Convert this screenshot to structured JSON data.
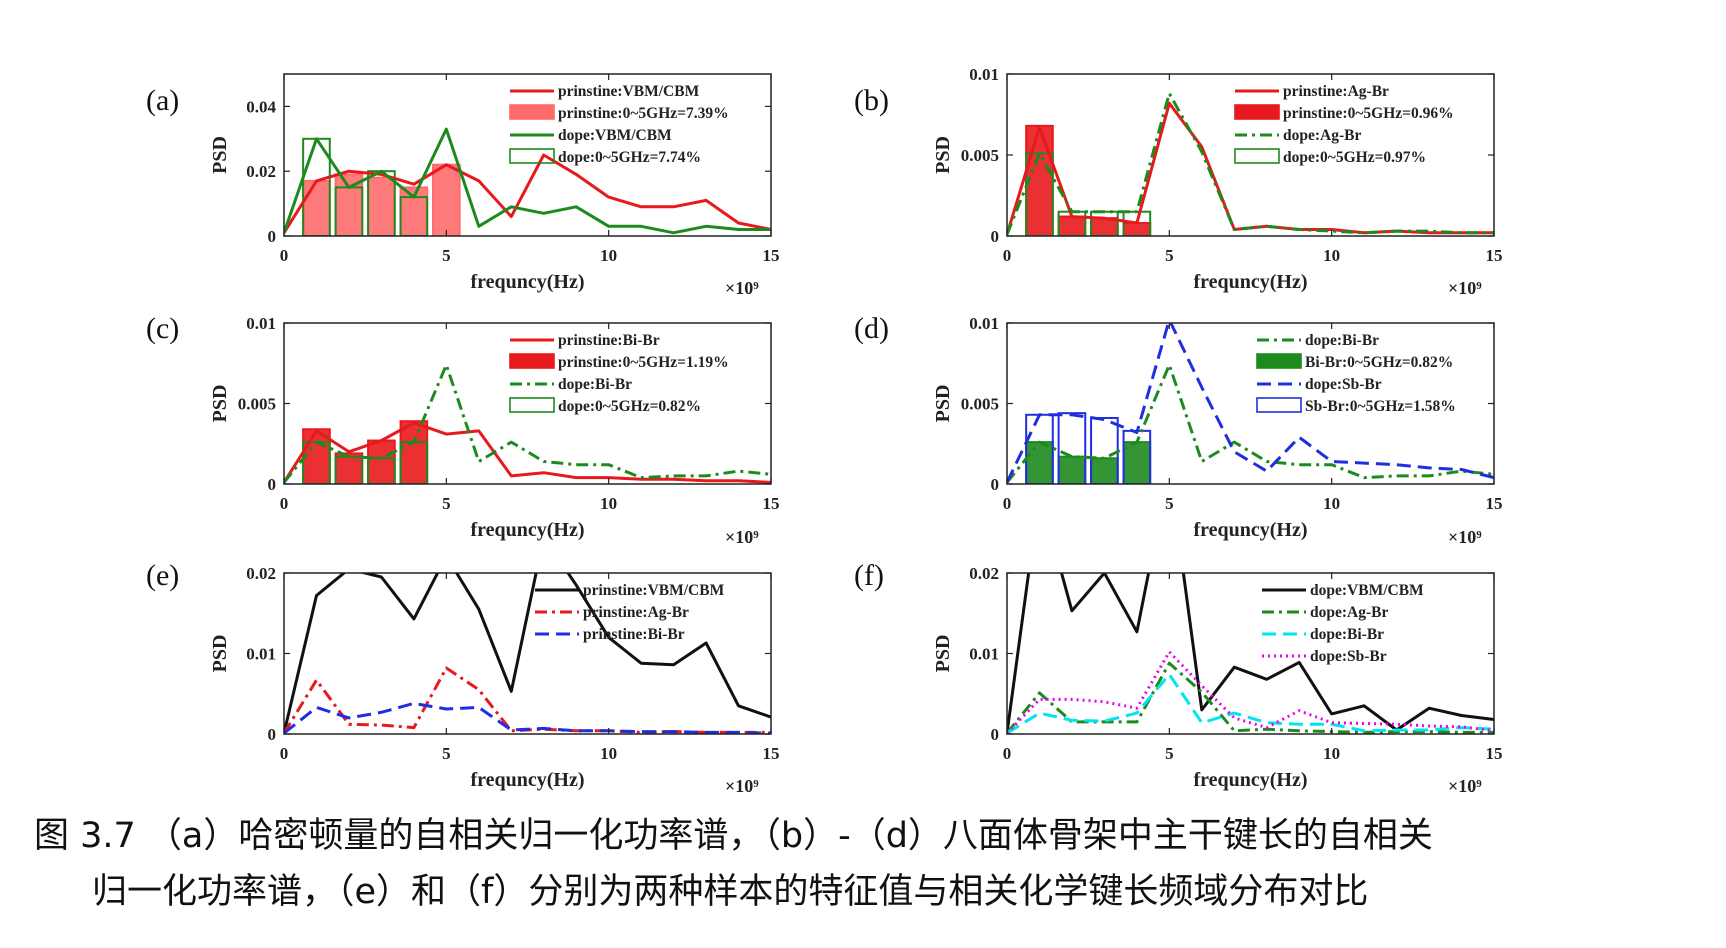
{
  "caption": {
    "line1": "图 3.7 （a）哈密顿量的自相关归一化功率谱，（b）-（d）八面体骨架中主干键长的自相关",
    "line2": "归一化功率谱，（e）和（f）分别为两种样本的特征值与相关化学键长频域分布对比"
  },
  "chart_data": [
    {
      "panel": "(a)",
      "type": "line",
      "xlabel": "frequncy(Hz)",
      "ylabel": "PSD",
      "x_multiplier": "×10⁹",
      "xlim": [
        0,
        15
      ],
      "ylim": [
        0,
        0.05
      ],
      "xticks": [
        0,
        5,
        10,
        15
      ],
      "yticks": [
        0,
        0.02,
        0.04
      ],
      "ytick_labels": [
        "0",
        "0.02",
        "0.04"
      ],
      "legend_position": "top-right",
      "grid": false,
      "series": [
        {
          "name": "prinstine:VBM/CBM",
          "kind": "line",
          "color": "#e8191d",
          "style": "solid",
          "x": [
            0,
            1,
            2,
            3,
            4,
            5,
            6,
            7,
            8,
            9,
            10,
            11,
            12,
            13,
            14,
            15
          ],
          "y": [
            0.001,
            0.017,
            0.02,
            0.019,
            0.016,
            0.022,
            0.017,
            0.006,
            0.025,
            0.019,
            0.012,
            0.009,
            0.009,
            0.011,
            0.004,
            0.002
          ]
        },
        {
          "name": "prinstine:0~5GHz=7.39%",
          "kind": "bar",
          "color": "#ff6b6b",
          "filled": true,
          "x": [
            1,
            2,
            3,
            4,
            5
          ],
          "y": [
            0.017,
            0.019,
            0.018,
            0.015,
            0.022
          ]
        },
        {
          "name": "dope:VBM/CBM",
          "kind": "line",
          "color": "#1e8a1e",
          "style": "solid",
          "x": [
            0,
            1,
            2,
            3,
            4,
            5,
            6,
            7,
            8,
            9,
            10,
            11,
            12,
            13,
            14,
            15
          ],
          "y": [
            0.001,
            0.03,
            0.015,
            0.02,
            0.012,
            0.033,
            0.003,
            0.009,
            0.007,
            0.009,
            0.003,
            0.003,
            0.001,
            0.003,
            0.002,
            0.002
          ]
        },
        {
          "name": "dope:0~5GHz=7.74%",
          "kind": "bar",
          "color": "#1e8a1e",
          "filled": false,
          "x": [
            1,
            2,
            3,
            4
          ],
          "y": [
            0.03,
            0.015,
            0.02,
            0.012
          ]
        }
      ]
    },
    {
      "panel": "(b)",
      "type": "line",
      "xlabel": "frequncy(Hz)",
      "ylabel": "PSD",
      "x_multiplier": "×10⁹",
      "xlim": [
        0,
        15
      ],
      "ylim": [
        0,
        0.01
      ],
      "xticks": [
        0,
        5,
        10,
        15
      ],
      "yticks": [
        0,
        0.005,
        0.01
      ],
      "ytick_labels": [
        "0",
        "0.005",
        "0.01"
      ],
      "legend_position": "top-right",
      "grid": false,
      "series": [
        {
          "name": "prinstine:Ag-Br",
          "kind": "line",
          "color": "#e8191d",
          "style": "solid",
          "x": [
            0,
            1,
            2,
            3,
            4,
            5,
            6,
            7,
            8,
            9,
            10,
            11,
            12,
            13,
            14,
            15
          ],
          "y": [
            0.0001,
            0.0067,
            0.0012,
            0.0011,
            0.0008,
            0.0082,
            0.0055,
            0.0004,
            0.0006,
            0.0004,
            0.0004,
            0.0002,
            0.0003,
            0.0002,
            0.0002,
            0.0002
          ]
        },
        {
          "name": "prinstine:0~5GHz=0.96%",
          "kind": "bar",
          "color": "#e8191d",
          "filled": true,
          "x": [
            1,
            2,
            3,
            4
          ],
          "y": [
            0.0068,
            0.0012,
            0.0011,
            0.0008
          ]
        },
        {
          "name": "dope:Ag-Br",
          "kind": "line",
          "color": "#1e8a1e",
          "style": "dashdot",
          "x": [
            0,
            1,
            2,
            3,
            4,
            5,
            6,
            7,
            8,
            9,
            10,
            11,
            12,
            13,
            14,
            15
          ],
          "y": [
            0.0001,
            0.0051,
            0.0015,
            0.0015,
            0.0015,
            0.0088,
            0.0052,
            0.0004,
            0.0006,
            0.0004,
            0.0003,
            0.0002,
            0.0003,
            0.0003,
            0.0002,
            0.0002
          ]
        },
        {
          "name": "dope:0~5GHz=0.97%",
          "kind": "bar",
          "color": "#1e8a1e",
          "filled": false,
          "x": [
            1,
            2,
            3,
            4
          ],
          "y": [
            0.0051,
            0.0015,
            0.0015,
            0.0015
          ]
        }
      ]
    },
    {
      "panel": "(c)",
      "type": "line",
      "xlabel": "frequncy(Hz)",
      "ylabel": "PSD",
      "x_multiplier": "×10⁹",
      "xlim": [
        0,
        15
      ],
      "ylim": [
        0,
        0.01
      ],
      "xticks": [
        0,
        5,
        10,
        15
      ],
      "yticks": [
        0,
        0.005,
        0.01
      ],
      "ytick_labels": [
        "0",
        "0.005",
        "0.01"
      ],
      "legend_position": "top-right",
      "grid": false,
      "series": [
        {
          "name": "prinstine:Bi-Br",
          "kind": "line",
          "color": "#e8191d",
          "style": "solid",
          "x": [
            0,
            1,
            2,
            3,
            4,
            5,
            6,
            7,
            8,
            9,
            10,
            11,
            12,
            13,
            14,
            15
          ],
          "y": [
            0.0001,
            0.0033,
            0.002,
            0.0027,
            0.0038,
            0.0031,
            0.0033,
            0.0005,
            0.0007,
            0.0004,
            0.0004,
            0.0003,
            0.0003,
            0.0002,
            0.0002,
            0.0001
          ]
        },
        {
          "name": "prinstine:0~5GHz=1.19%",
          "kind": "bar",
          "color": "#e8191d",
          "filled": true,
          "x": [
            1,
            2,
            3,
            4
          ],
          "y": [
            0.0034,
            0.0019,
            0.0027,
            0.0039
          ]
        },
        {
          "name": "dope:Bi-Br",
          "kind": "line",
          "color": "#1e8a1e",
          "style": "dashdot",
          "x": [
            0,
            1,
            2,
            3,
            4,
            5,
            6,
            7,
            8,
            9,
            10,
            11,
            12,
            13,
            14,
            15
          ],
          "y": [
            0.0001,
            0.0026,
            0.0017,
            0.0016,
            0.0026,
            0.0074,
            0.0014,
            0.0026,
            0.0014,
            0.0012,
            0.0012,
            0.0004,
            0.0005,
            0.0005,
            0.0008,
            0.0006
          ]
        },
        {
          "name": "dope:0~5GHz=0.82%",
          "kind": "bar",
          "color": "#1e8a1e",
          "filled": false,
          "x": [
            1,
            2,
            3,
            4
          ],
          "y": [
            0.0026,
            0.0017,
            0.0016,
            0.0026
          ]
        }
      ]
    },
    {
      "panel": "(d)",
      "type": "line",
      "xlabel": "frequncy(Hz)",
      "ylabel": "PSD",
      "x_multiplier": "×10⁹",
      "xlim": [
        0,
        15
      ],
      "ylim": [
        0,
        0.01
      ],
      "xticks": [
        0,
        5,
        10,
        15
      ],
      "yticks": [
        0,
        0.005,
        0.01
      ],
      "ytick_labels": [
        "0",
        "0.005",
        "0.01"
      ],
      "legend_position": "top-right",
      "grid": false,
      "series": [
        {
          "name": "dope:Bi-Br",
          "kind": "line",
          "color": "#1e8a1e",
          "style": "dashdot",
          "x": [
            0,
            1,
            2,
            3,
            4,
            5,
            6,
            7,
            8,
            9,
            10,
            11,
            12,
            13,
            14,
            15
          ],
          "y": [
            0.0001,
            0.0026,
            0.0017,
            0.0016,
            0.0026,
            0.0074,
            0.0014,
            0.0026,
            0.0014,
            0.0012,
            0.0012,
            0.0004,
            0.0005,
            0.0005,
            0.0008,
            0.0006
          ]
        },
        {
          "name": "Bi-Br:0~5GHz=0.82%",
          "kind": "bar",
          "color": "#1e8a1e",
          "filled": true,
          "x": [
            1,
            2,
            3,
            4
          ],
          "y": [
            0.0026,
            0.0017,
            0.0016,
            0.0026
          ]
        },
        {
          "name": "dope:Sb-Br",
          "kind": "line",
          "color": "#1f2ee0",
          "style": "dashed",
          "x": [
            0,
            1,
            2,
            3,
            4,
            5,
            6,
            7,
            8,
            9,
            10,
            11,
            12,
            13,
            14,
            15
          ],
          "y": [
            0.0001,
            0.0043,
            0.0043,
            0.004,
            0.0032,
            0.0102,
            0.006,
            0.002,
            0.0008,
            0.0029,
            0.0014,
            0.0013,
            0.0012,
            0.001,
            0.0009,
            0.0004
          ]
        },
        {
          "name": "Sb-Br:0~5GHz=1.58%",
          "kind": "bar",
          "color": "#1f2ee0",
          "filled": false,
          "x": [
            1,
            2,
            3,
            4
          ],
          "y": [
            0.0043,
            0.0044,
            0.0041,
            0.0033
          ]
        }
      ]
    },
    {
      "panel": "(e)",
      "type": "line",
      "xlabel": "frequncy(Hz)",
      "ylabel": "PSD",
      "x_multiplier": "×10⁹",
      "xlim": [
        0,
        15
      ],
      "ylim": [
        0,
        0.02
      ],
      "xticks": [
        0,
        5,
        10,
        15
      ],
      "yticks": [
        0,
        0.01,
        0.02
      ],
      "ytick_labels": [
        "0",
        "0.01",
        "0.02"
      ],
      "legend_position": "top-right",
      "grid": false,
      "series": [
        {
          "name": "prinstine:VBM/CBM",
          "kind": "line",
          "color": "#111111",
          "style": "solid",
          "x": [
            0,
            1,
            2,
            3,
            4,
            5,
            6,
            7,
            8,
            9,
            10,
            11,
            12,
            13,
            14,
            15
          ],
          "y": [
            0.0001,
            0.0172,
            0.0205,
            0.0195,
            0.0143,
            0.0221,
            0.0155,
            0.0053,
            0.0245,
            0.0185,
            0.012,
            0.0088,
            0.0086,
            0.0113,
            0.0035,
            0.0021
          ]
        },
        {
          "name": "prinstine:Ag-Br",
          "kind": "line",
          "color": "#e8191d",
          "style": "dashdot",
          "x": [
            0,
            1,
            2,
            3,
            4,
            5,
            6,
            7,
            8,
            9,
            10,
            11,
            12,
            13,
            14,
            15
          ],
          "y": [
            0.0001,
            0.0067,
            0.0012,
            0.0011,
            0.0008,
            0.0082,
            0.0055,
            0.0004,
            0.0006,
            0.0004,
            0.0004,
            0.0002,
            0.0003,
            0.0002,
            0.0002,
            0.0002
          ]
        },
        {
          "name": "prinstine:Bi-Br",
          "kind": "line",
          "color": "#1f2ee0",
          "style": "dashed",
          "x": [
            0,
            1,
            2,
            3,
            4,
            5,
            6,
            7,
            8,
            9,
            10,
            11,
            12,
            13,
            14,
            15
          ],
          "y": [
            0.0001,
            0.0033,
            0.002,
            0.0027,
            0.0038,
            0.0031,
            0.0033,
            0.0005,
            0.0007,
            0.0004,
            0.0004,
            0.0003,
            0.0003,
            0.0002,
            0.0002,
            0.0001
          ]
        }
      ]
    },
    {
      "panel": "(f)",
      "type": "line",
      "xlabel": "frequncy(Hz)",
      "ylabel": "PSD",
      "x_multiplier": "×10⁹",
      "xlim": [
        0,
        15
      ],
      "ylim": [
        0,
        0.02
      ],
      "xticks": [
        0,
        5,
        10,
        15
      ],
      "yticks": [
        0,
        0.01,
        0.02
      ],
      "ytick_labels": [
        "0",
        "0.01",
        "0.02"
      ],
      "legend_position": "top-right",
      "grid": false,
      "series": [
        {
          "name": "dope:VBM/CBM",
          "kind": "line",
          "color": "#111111",
          "style": "solid",
          "x": [
            0,
            1,
            2,
            3,
            4,
            5,
            6,
            7,
            8,
            9,
            10,
            11,
            12,
            13,
            14,
            15
          ],
          "y": [
            0.0001,
            0.03,
            0.0153,
            0.02,
            0.0127,
            0.033,
            0.003,
            0.0083,
            0.0068,
            0.0089,
            0.0025,
            0.0035,
            0.0005,
            0.0032,
            0.0023,
            0.0018
          ]
        },
        {
          "name": "dope:Ag-Br",
          "kind": "line",
          "color": "#1e8a1e",
          "style": "dashdot",
          "x": [
            0,
            1,
            2,
            3,
            4,
            5,
            6,
            7,
            8,
            9,
            10,
            11,
            12,
            13,
            14,
            15
          ],
          "y": [
            0.0001,
            0.0051,
            0.0015,
            0.0015,
            0.0015,
            0.0088,
            0.0052,
            0.0004,
            0.0006,
            0.0004,
            0.0003,
            0.0002,
            0.0003,
            0.0003,
            0.0002,
            0.0002
          ]
        },
        {
          "name": "dope:Bi-Br",
          "kind": "line",
          "color": "#00e5ee",
          "style": "dashed",
          "x": [
            0,
            1,
            2,
            3,
            4,
            5,
            6,
            7,
            8,
            9,
            10,
            11,
            12,
            13,
            14,
            15
          ],
          "y": [
            0.0001,
            0.0026,
            0.0017,
            0.0016,
            0.0026,
            0.0074,
            0.0014,
            0.0026,
            0.0014,
            0.0012,
            0.0012,
            0.0004,
            0.0005,
            0.0005,
            0.0008,
            0.0006
          ]
        },
        {
          "name": "dope:Sb-Br",
          "kind": "line",
          "color": "#ee00ee",
          "style": "dotted",
          "x": [
            0,
            1,
            2,
            3,
            4,
            5,
            6,
            7,
            8,
            9,
            10,
            11,
            12,
            13,
            14,
            15
          ],
          "y": [
            0.0001,
            0.0043,
            0.0043,
            0.004,
            0.0032,
            0.0102,
            0.006,
            0.002,
            0.0008,
            0.0029,
            0.0014,
            0.0013,
            0.0012,
            0.001,
            0.0009,
            0.0004
          ]
        }
      ]
    }
  ]
}
